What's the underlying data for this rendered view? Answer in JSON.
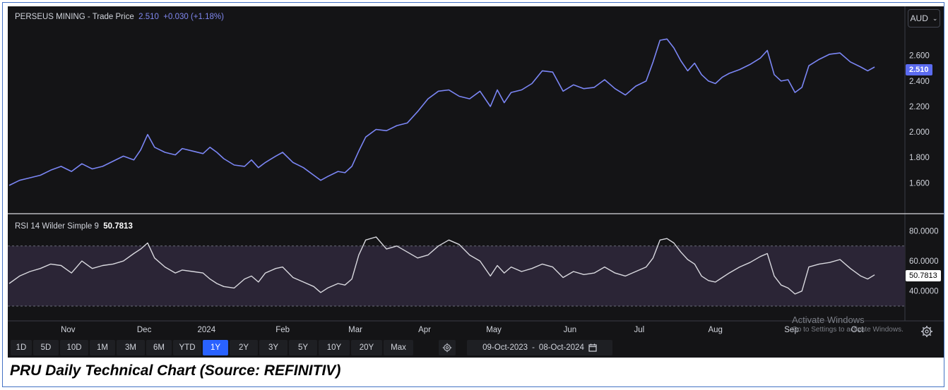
{
  "title_bar": {
    "instrument": "PERSEUS MINING",
    "separator": " - ",
    "label": "Trade Price",
    "price": "2.510",
    "change": "+0.030 (+1.18%)"
  },
  "currency": "AUD",
  "rsi_legend": {
    "label": "RSI 14 Wilder Simple 9",
    "value": "50.7813"
  },
  "price_tag": "2.510",
  "rsi_tag": "50.7813",
  "colors": {
    "background": "#141416",
    "price_line": "#7b86f5",
    "rsi_line": "#d9d9df",
    "rsi_band": "#2b2536",
    "active_range": "#2962ff"
  },
  "range_buttons": [
    "1D",
    "5D",
    "10D",
    "1M",
    "3M",
    "6M",
    "YTD",
    "1Y",
    "2Y",
    "3Y",
    "5Y",
    "10Y",
    "20Y",
    "Max"
  ],
  "active_range": "1Y",
  "date_range": {
    "start": "09-Oct-2023",
    "separator": "-",
    "end": "08-Oct-2024"
  },
  "watermark": {
    "line1": "Activate Windows",
    "line2": "Go to Settings to activate Windows."
  },
  "caption": "PRU Daily Technical Chart (Source: REFINITIV)",
  "chart_data": [
    {
      "type": "line",
      "name": "Trade Price",
      "yticks": [
        "1.600",
        "1.800",
        "2.000",
        "2.200",
        "2.400",
        "2.600"
      ],
      "ylim": [
        1.48,
        2.82
      ],
      "xlim": [
        0,
        251
      ],
      "x_tick_labels": [
        {
          "label": "Nov",
          "x": 17
        },
        {
          "label": "Dec",
          "x": 39
        },
        {
          "label": "2024",
          "x": 57
        },
        {
          "label": "Feb",
          "x": 79
        },
        {
          "label": "Mar",
          "x": 100
        },
        {
          "label": "Apr",
          "x": 120
        },
        {
          "label": "May",
          "x": 140
        },
        {
          "label": "Jun",
          "x": 162
        },
        {
          "label": "Jul",
          "x": 182
        },
        {
          "label": "Aug",
          "x": 204
        },
        {
          "label": "Sep",
          "x": 226
        },
        {
          "label": "Oct",
          "x": 245
        }
      ],
      "points": [
        [
          0,
          1.58
        ],
        [
          3,
          1.62
        ],
        [
          6,
          1.64
        ],
        [
          9,
          1.66
        ],
        [
          12,
          1.7
        ],
        [
          15,
          1.73
        ],
        [
          18,
          1.69
        ],
        [
          21,
          1.75
        ],
        [
          24,
          1.71
        ],
        [
          27,
          1.73
        ],
        [
          30,
          1.77
        ],
        [
          33,
          1.81
        ],
        [
          36,
          1.78
        ],
        [
          38,
          1.86
        ],
        [
          40,
          1.98
        ],
        [
          42,
          1.88
        ],
        [
          45,
          1.84
        ],
        [
          48,
          1.82
        ],
        [
          50,
          1.87
        ],
        [
          53,
          1.85
        ],
        [
          56,
          1.83
        ],
        [
          58,
          1.88
        ],
        [
          60,
          1.84
        ],
        [
          62,
          1.79
        ],
        [
          65,
          1.74
        ],
        [
          68,
          1.73
        ],
        [
          70,
          1.78
        ],
        [
          72,
          1.72
        ],
        [
          74,
          1.76
        ],
        [
          77,
          1.81
        ],
        [
          79,
          1.84
        ],
        [
          82,
          1.76
        ],
        [
          85,
          1.72
        ],
        [
          88,
          1.66
        ],
        [
          90,
          1.62
        ],
        [
          92,
          1.65
        ],
        [
          95,
          1.69
        ],
        [
          97,
          1.68
        ],
        [
          99,
          1.73
        ],
        [
          101,
          1.85
        ],
        [
          103,
          1.96
        ],
        [
          106,
          2.02
        ],
        [
          109,
          2.01
        ],
        [
          112,
          2.05
        ],
        [
          115,
          2.07
        ],
        [
          118,
          2.16
        ],
        [
          121,
          2.26
        ],
        [
          124,
          2.32
        ],
        [
          127,
          2.33
        ],
        [
          130,
          2.28
        ],
        [
          133,
          2.26
        ],
        [
          136,
          2.32
        ],
        [
          139,
          2.2
        ],
        [
          141,
          2.33
        ],
        [
          143,
          2.23
        ],
        [
          145,
          2.31
        ],
        [
          148,
          2.33
        ],
        [
          151,
          2.38
        ],
        [
          154,
          2.48
        ],
        [
          157,
          2.47
        ],
        [
          160,
          2.32
        ],
        [
          163,
          2.37
        ],
        [
          166,
          2.34
        ],
        [
          169,
          2.35
        ],
        [
          172,
          2.41
        ],
        [
          175,
          2.34
        ],
        [
          178,
          2.29
        ],
        [
          181,
          2.36
        ],
        [
          184,
          2.4
        ],
        [
          186,
          2.55
        ],
        [
          188,
          2.72
        ],
        [
          190,
          2.73
        ],
        [
          192,
          2.66
        ],
        [
          194,
          2.56
        ],
        [
          196,
          2.48
        ],
        [
          198,
          2.54
        ],
        [
          200,
          2.45
        ],
        [
          202,
          2.4
        ],
        [
          204,
          2.38
        ],
        [
          206,
          2.43
        ],
        [
          208,
          2.46
        ],
        [
          211,
          2.49
        ],
        [
          214,
          2.53
        ],
        [
          217,
          2.58
        ],
        [
          219,
          2.64
        ],
        [
          221,
          2.45
        ],
        [
          223,
          2.4
        ],
        [
          225,
          2.41
        ],
        [
          227,
          2.31
        ],
        [
          229,
          2.35
        ],
        [
          231,
          2.52
        ],
        [
          234,
          2.57
        ],
        [
          237,
          2.61
        ],
        [
          240,
          2.62
        ],
        [
          243,
          2.55
        ],
        [
          246,
          2.51
        ],
        [
          248,
          2.48
        ],
        [
          250,
          2.51
        ]
      ]
    },
    {
      "type": "line",
      "name": "RSI 14 Wilder Simple 9",
      "yticks": [
        "40.0000",
        "60.0000",
        "80.0000"
      ],
      "ylim": [
        22,
        84
      ],
      "band": [
        30,
        70
      ],
      "xlim": [
        0,
        251
      ],
      "points": [
        [
          0,
          45
        ],
        [
          3,
          50
        ],
        [
          6,
          53
        ],
        [
          9,
          55
        ],
        [
          12,
          58
        ],
        [
          15,
          57
        ],
        [
          18,
          52
        ],
        [
          21,
          60
        ],
        [
          24,
          55
        ],
        [
          27,
          57
        ],
        [
          30,
          58
        ],
        [
          33,
          60
        ],
        [
          36,
          65
        ],
        [
          38,
          68
        ],
        [
          40,
          72
        ],
        [
          42,
          62
        ],
        [
          45,
          56
        ],
        [
          48,
          52
        ],
        [
          50,
          54
        ],
        [
          53,
          53
        ],
        [
          56,
          52
        ],
        [
          58,
          48
        ],
        [
          60,
          45
        ],
        [
          62,
          43
        ],
        [
          65,
          42
        ],
        [
          68,
          48
        ],
        [
          70,
          50
        ],
        [
          72,
          46
        ],
        [
          74,
          52
        ],
        [
          77,
          55
        ],
        [
          79,
          56
        ],
        [
          82,
          49
        ],
        [
          85,
          46
        ],
        [
          88,
          43
        ],
        [
          90,
          39
        ],
        [
          92,
          42
        ],
        [
          95,
          45
        ],
        [
          97,
          44
        ],
        [
          99,
          48
        ],
        [
          101,
          64
        ],
        [
          103,
          74
        ],
        [
          106,
          76
        ],
        [
          109,
          68
        ],
        [
          112,
          70
        ],
        [
          115,
          66
        ],
        [
          118,
          62
        ],
        [
          121,
          64
        ],
        [
          124,
          70
        ],
        [
          127,
          74
        ],
        [
          130,
          71
        ],
        [
          133,
          64
        ],
        [
          136,
          60
        ],
        [
          139,
          50
        ],
        [
          141,
          57
        ],
        [
          143,
          52
        ],
        [
          145,
          56
        ],
        [
          148,
          53
        ],
        [
          151,
          55
        ],
        [
          154,
          58
        ],
        [
          157,
          56
        ],
        [
          160,
          49
        ],
        [
          163,
          53
        ],
        [
          166,
          51
        ],
        [
          169,
          52
        ],
        [
          172,
          56
        ],
        [
          175,
          52
        ],
        [
          178,
          50
        ],
        [
          181,
          53
        ],
        [
          184,
          56
        ],
        [
          186,
          62
        ],
        [
          188,
          74
        ],
        [
          190,
          75
        ],
        [
          192,
          72
        ],
        [
          194,
          66
        ],
        [
          196,
          61
        ],
        [
          198,
          58
        ],
        [
          200,
          50
        ],
        [
          202,
          47
        ],
        [
          204,
          46
        ],
        [
          206,
          49
        ],
        [
          208,
          52
        ],
        [
          211,
          56
        ],
        [
          214,
          59
        ],
        [
          217,
          63
        ],
        [
          219,
          65
        ],
        [
          221,
          50
        ],
        [
          223,
          44
        ],
        [
          225,
          42
        ],
        [
          227,
          38
        ],
        [
          229,
          40
        ],
        [
          231,
          56
        ],
        [
          234,
          58
        ],
        [
          237,
          59
        ],
        [
          240,
          61
        ],
        [
          243,
          55
        ],
        [
          246,
          50
        ],
        [
          248,
          48
        ],
        [
          250,
          50.8
        ]
      ]
    }
  ]
}
